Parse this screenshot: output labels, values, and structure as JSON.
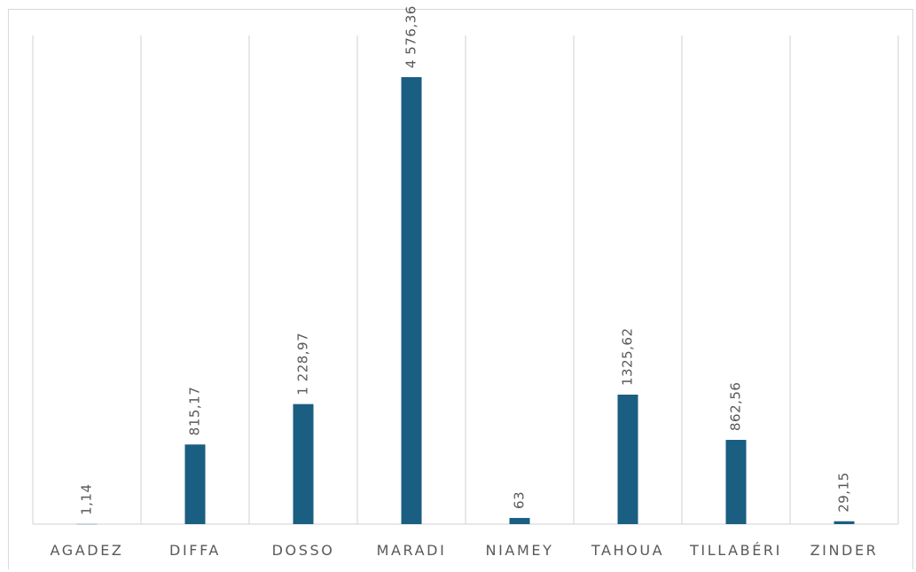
{
  "chart_data": {
    "type": "bar",
    "title": "",
    "xlabel": "",
    "ylabel": "",
    "categories": [
      "AGADEZ",
      "DIFFA",
      "DOSSO",
      "MARADI",
      "NIAMEY",
      "TAHOUA",
      "TILLABÉRI",
      "ZINDER"
    ],
    "values": [
      1.14,
      815.17,
      1228.97,
      4576.36,
      63,
      1325.62,
      862.56,
      29.15
    ],
    "value_labels": [
      "1,14",
      "815,17",
      "1 228,97",
      "4 576,36",
      "63",
      "1325,62",
      "862,56",
      "29,15"
    ],
    "ylim": [
      0,
      5000
    ],
    "grid": "vertical category separators",
    "legend": "none",
    "bar_color": "#1a5e82",
    "grid_color": "#d9d9d9",
    "label_color": "#595959"
  }
}
